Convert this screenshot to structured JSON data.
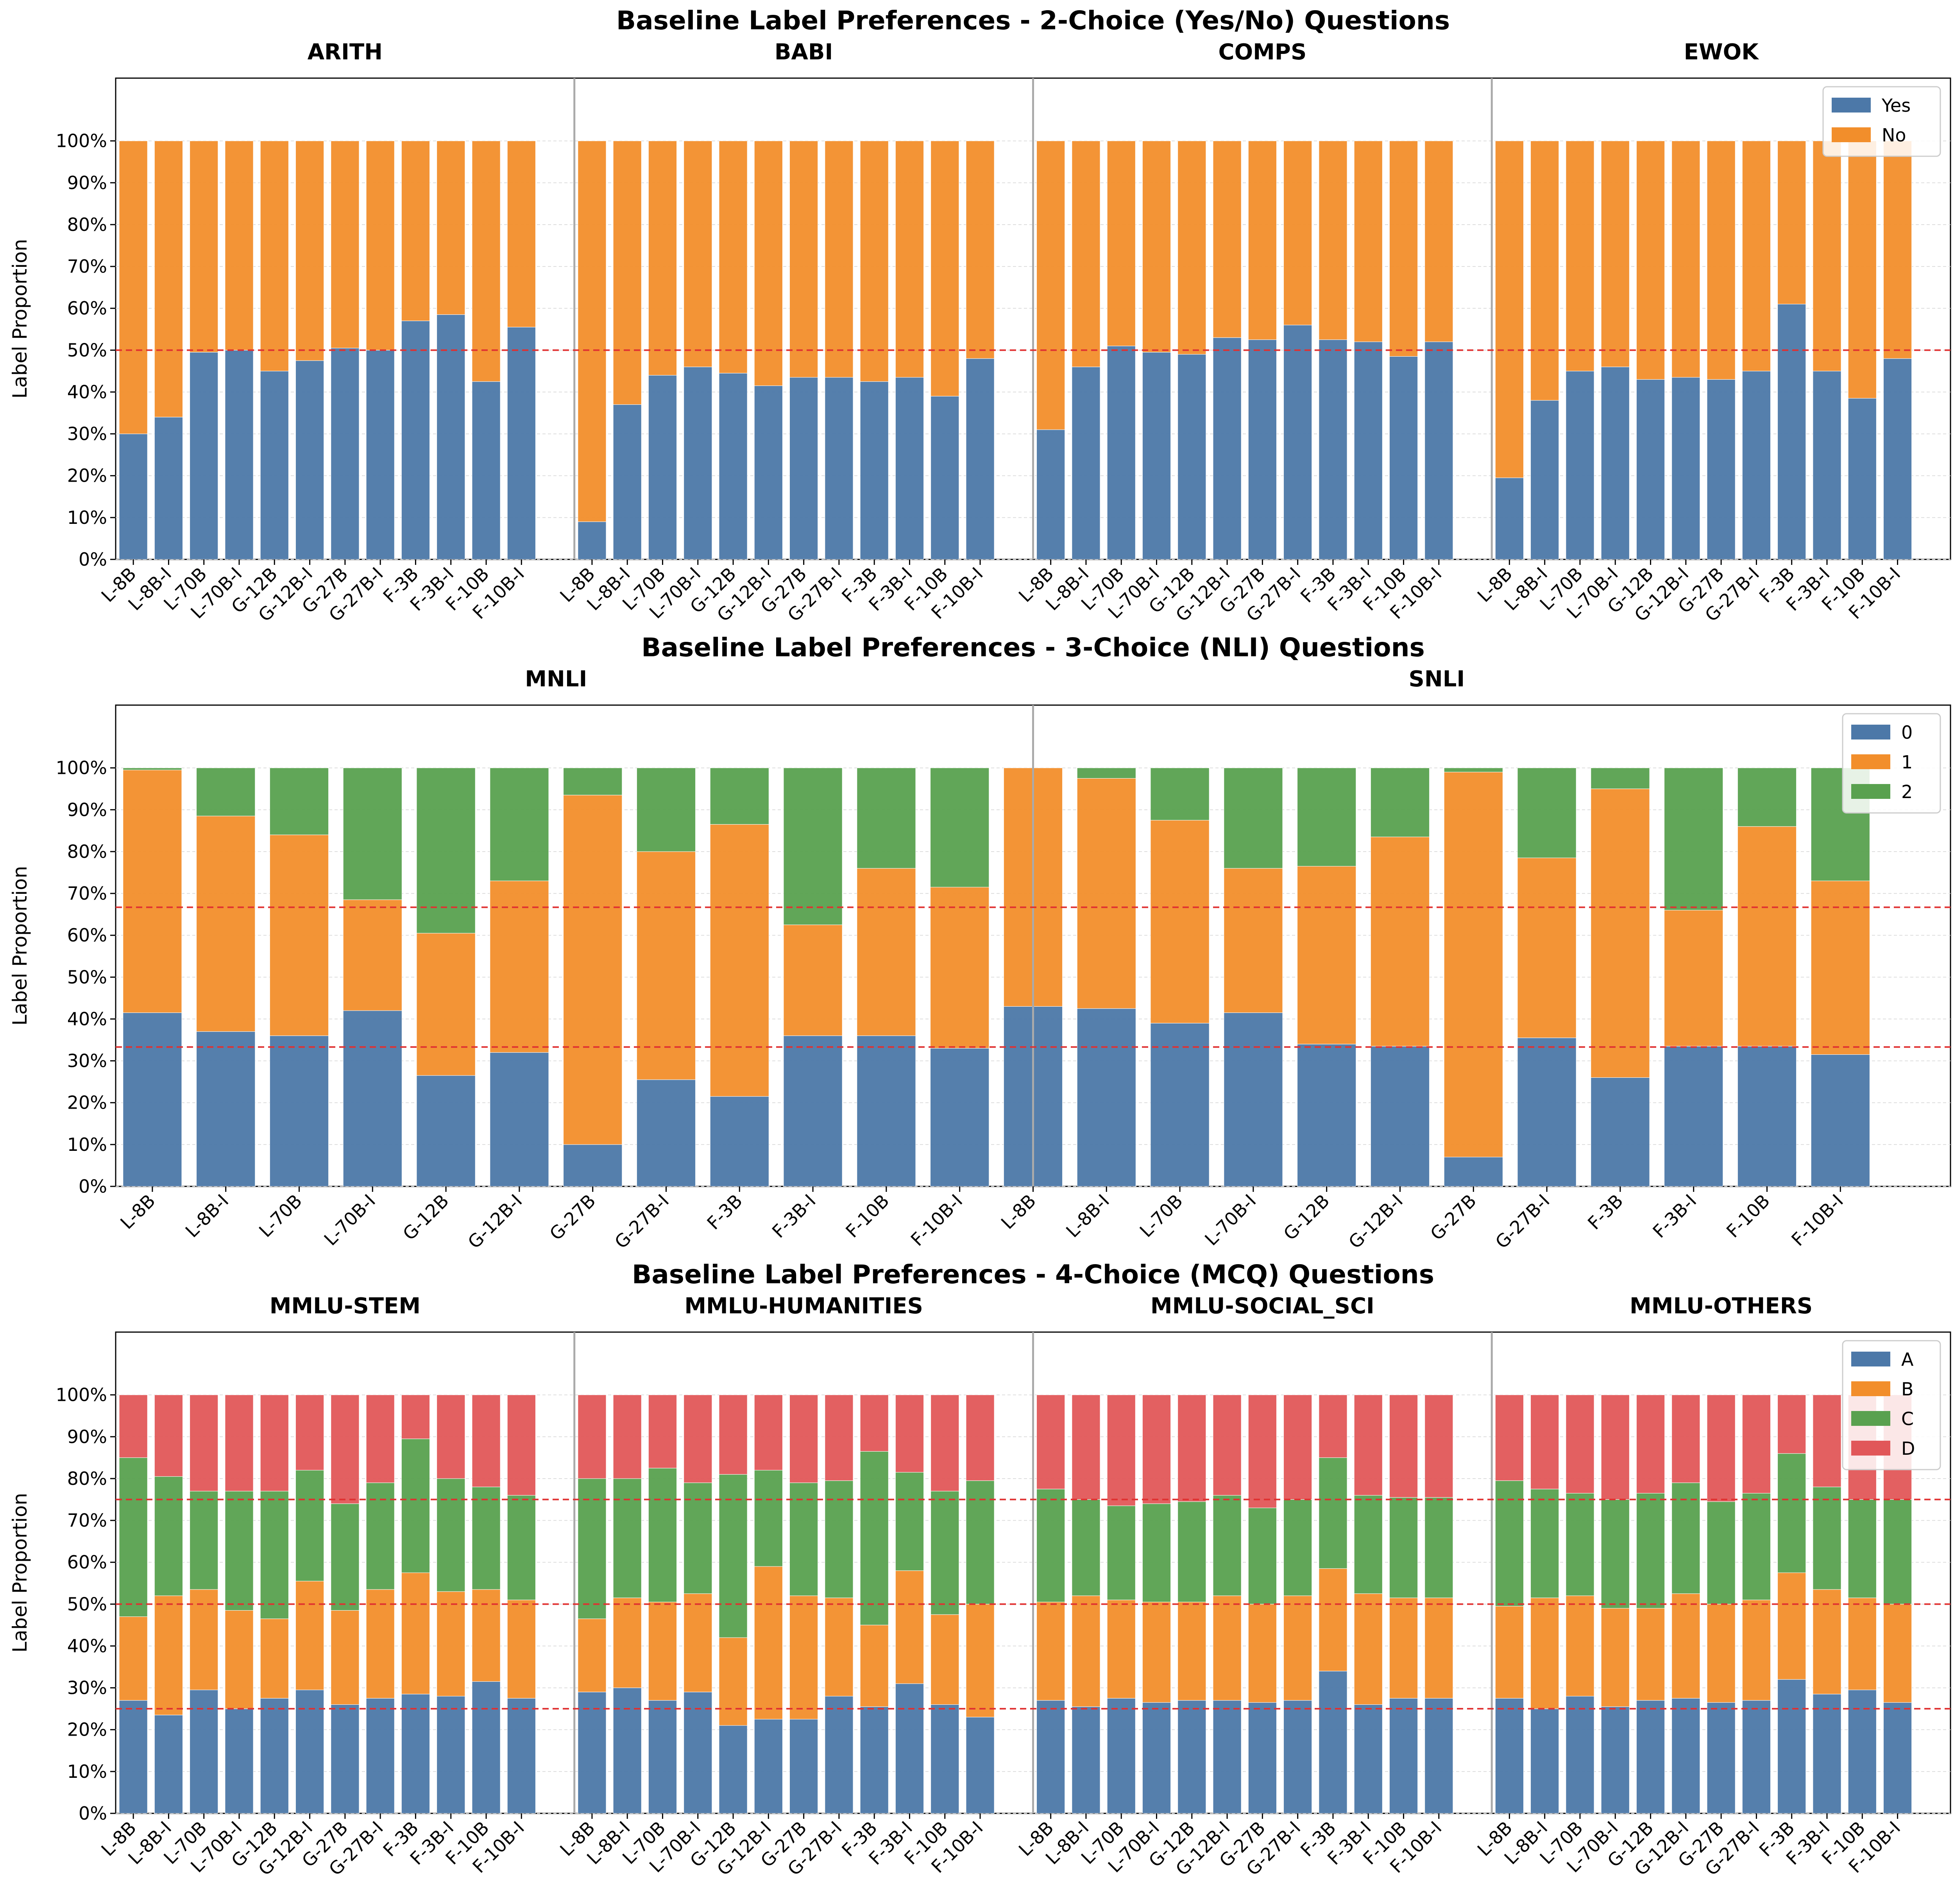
{
  "colors": {
    "A": "#4c78a8",
    "B": "#f28e2b",
    "C": "#59a14f",
    "D": "#e15759",
    "reference": "#e03030",
    "separator": "#aaaaaa"
  },
  "chart_data": [
    {
      "type": "bar",
      "stacked": true,
      "title": "Baseline Label Preferences - 2-Choice (Yes/No) Questions",
      "ylabel": "Label Proportion",
      "ylim": [
        0,
        1.15
      ],
      "yticks": [
        "0%",
        "10%",
        "20%",
        "30%",
        "40%",
        "50%",
        "60%",
        "70%",
        "80%",
        "90%",
        "100%"
      ],
      "reference_lines": [
        0.5
      ],
      "legend": {
        "position": "top-right",
        "labels": [
          "Yes",
          "No"
        ]
      },
      "categories": [
        "L-8B",
        "L-8B-I",
        "L-70B",
        "L-70B-I",
        "G-12B",
        "G-12B-I",
        "G-27B",
        "G-27B-I",
        "F-3B",
        "F-3B-I",
        "F-10B",
        "F-10B-I"
      ],
      "groups": [
        {
          "name": "ARITH",
          "series": [
            {
              "name": "Yes",
              "values": [
                0.3,
                0.34,
                0.495,
                0.5,
                0.45,
                0.475,
                0.505,
                0.5,
                0.57,
                0.585,
                0.425,
                0.555
              ]
            },
            {
              "name": "No",
              "values": [
                0.7,
                0.66,
                0.505,
                0.5,
                0.55,
                0.525,
                0.495,
                0.5,
                0.43,
                0.415,
                0.575,
                0.445
              ]
            }
          ]
        },
        {
          "name": "BABI",
          "series": [
            {
              "name": "Yes",
              "values": [
                0.09,
                0.37,
                0.44,
                0.46,
                0.445,
                0.415,
                0.435,
                0.435,
                0.425,
                0.435,
                0.39,
                0.48
              ]
            },
            {
              "name": "No",
              "values": [
                0.91,
                0.63,
                0.56,
                0.54,
                0.555,
                0.585,
                0.565,
                0.565,
                0.575,
                0.565,
                0.61,
                0.52
              ]
            }
          ]
        },
        {
          "name": "COMPS",
          "series": [
            {
              "name": "Yes",
              "values": [
                0.31,
                0.46,
                0.51,
                0.495,
                0.49,
                0.53,
                0.525,
                0.56,
                0.525,
                0.52,
                0.485,
                0.52
              ]
            },
            {
              "name": "No",
              "values": [
                0.69,
                0.54,
                0.49,
                0.505,
                0.51,
                0.47,
                0.475,
                0.44,
                0.475,
                0.48,
                0.515,
                0.48
              ]
            }
          ]
        },
        {
          "name": "EWOK",
          "series": [
            {
              "name": "Yes",
              "values": [
                0.195,
                0.38,
                0.45,
                0.46,
                0.43,
                0.435,
                0.43,
                0.45,
                0.61,
                0.45,
                0.385,
                0.48
              ]
            },
            {
              "name": "No",
              "values": [
                0.805,
                0.62,
                0.55,
                0.54,
                0.57,
                0.565,
                0.57,
                0.55,
                0.39,
                0.55,
                0.615,
                0.52
              ]
            }
          ]
        }
      ]
    },
    {
      "type": "bar",
      "stacked": true,
      "title": "Baseline Label Preferences - 3-Choice (NLI) Questions",
      "ylabel": "Label Proportion",
      "ylim": [
        0,
        1.15
      ],
      "yticks": [
        "0%",
        "10%",
        "20%",
        "30%",
        "40%",
        "50%",
        "60%",
        "70%",
        "80%",
        "90%",
        "100%"
      ],
      "reference_lines": [
        0.333,
        0.667
      ],
      "legend": {
        "position": "top-right",
        "labels": [
          "0",
          "1",
          "2"
        ]
      },
      "categories": [
        "L-8B",
        "L-8B-I",
        "L-70B",
        "L-70B-I",
        "G-12B",
        "G-12B-I",
        "G-27B",
        "G-27B-I",
        "F-3B",
        "F-3B-I",
        "F-10B",
        "F-10B-I"
      ],
      "groups": [
        {
          "name": "MNLI",
          "series": [
            {
              "name": "0",
              "values": [
                0.415,
                0.37,
                0.36,
                0.42,
                0.265,
                0.32,
                0.1,
                0.255,
                0.215,
                0.36,
                0.36,
                0.33
              ]
            },
            {
              "name": "1",
              "values": [
                0.58,
                0.515,
                0.48,
                0.265,
                0.34,
                0.41,
                0.835,
                0.545,
                0.65,
                0.265,
                0.4,
                0.385
              ]
            },
            {
              "name": "2",
              "values": [
                0.005,
                0.115,
                0.16,
                0.315,
                0.395,
                0.27,
                0.065,
                0.2,
                0.135,
                0.375,
                0.24,
                0.285
              ]
            }
          ]
        },
        {
          "name": "SNLI",
          "series": [
            {
              "name": "0",
              "values": [
                0.43,
                0.425,
                0.39,
                0.415,
                0.34,
                0.335,
                0.07,
                0.355,
                0.26,
                0.335,
                0.335,
                0.315
              ]
            },
            {
              "name": "1",
              "values": [
                0.57,
                0.55,
                0.485,
                0.345,
                0.425,
                0.5,
                0.92,
                0.43,
                0.69,
                0.325,
                0.525,
                0.415
              ]
            },
            {
              "name": "2",
              "values": [
                0.0,
                0.025,
                0.125,
                0.24,
                0.235,
                0.165,
                0.01,
                0.215,
                0.05,
                0.34,
                0.14,
                0.27
              ]
            }
          ]
        }
      ]
    },
    {
      "type": "bar",
      "stacked": true,
      "title": "Baseline Label Preferences - 4-Choice (MCQ) Questions",
      "ylabel": "Label Proportion",
      "ylim": [
        0,
        1.15
      ],
      "yticks": [
        "0%",
        "10%",
        "20%",
        "30%",
        "40%",
        "50%",
        "60%",
        "70%",
        "80%",
        "90%",
        "100%"
      ],
      "reference_lines": [
        0.25,
        0.5,
        0.75
      ],
      "legend": {
        "position": "top-right",
        "labels": [
          "A",
          "B",
          "C",
          "D"
        ]
      },
      "categories": [
        "L-8B",
        "L-8B-I",
        "L-70B",
        "L-70B-I",
        "G-12B",
        "G-12B-I",
        "G-27B",
        "G-27B-I",
        "F-3B",
        "F-3B-I",
        "F-10B",
        "F-10B-I"
      ],
      "groups": [
        {
          "name": "MMLU-STEM",
          "series": [
            {
              "name": "A",
              "values": [
                0.27,
                0.235,
                0.295,
                0.25,
                0.275,
                0.295,
                0.26,
                0.275,
                0.285,
                0.28,
                0.315,
                0.275
              ]
            },
            {
              "name": "B",
              "values": [
                0.2,
                0.285,
                0.24,
                0.235,
                0.19,
                0.26,
                0.225,
                0.26,
                0.29,
                0.25,
                0.22,
                0.235
              ]
            },
            {
              "name": "C",
              "values": [
                0.38,
                0.285,
                0.235,
                0.285,
                0.305,
                0.265,
                0.255,
                0.255,
                0.32,
                0.27,
                0.245,
                0.25
              ]
            },
            {
              "name": "D",
              "values": [
                0.15,
                0.195,
                0.23,
                0.23,
                0.23,
                0.18,
                0.26,
                0.21,
                0.105,
                0.2,
                0.22,
                0.24
              ]
            }
          ]
        },
        {
          "name": "MMLU-HUMANITIES",
          "series": [
            {
              "name": "A",
              "values": [
                0.29,
                0.3,
                0.27,
                0.29,
                0.21,
                0.225,
                0.225,
                0.28,
                0.255,
                0.31,
                0.26,
                0.23
              ]
            },
            {
              "name": "B",
              "values": [
                0.175,
                0.215,
                0.235,
                0.235,
                0.21,
                0.365,
                0.295,
                0.235,
                0.195,
                0.27,
                0.215,
                0.27
              ]
            },
            {
              "name": "C",
              "values": [
                0.335,
                0.285,
                0.32,
                0.265,
                0.39,
                0.23,
                0.27,
                0.28,
                0.415,
                0.235,
                0.295,
                0.295
              ]
            },
            {
              "name": "D",
              "values": [
                0.2,
                0.2,
                0.175,
                0.21,
                0.19,
                0.18,
                0.21,
                0.205,
                0.135,
                0.185,
                0.23,
                0.205
              ]
            }
          ]
        },
        {
          "name": "MMLU-SOCIAL_SCI",
          "series": [
            {
              "name": "A",
              "values": [
                0.27,
                0.255,
                0.275,
                0.265,
                0.27,
                0.27,
                0.265,
                0.27,
                0.34,
                0.26,
                0.275,
                0.275
              ]
            },
            {
              "name": "B",
              "values": [
                0.235,
                0.265,
                0.235,
                0.24,
                0.235,
                0.25,
                0.235,
                0.25,
                0.245,
                0.265,
                0.24,
                0.24
              ]
            },
            {
              "name": "C",
              "values": [
                0.27,
                0.23,
                0.225,
                0.235,
                0.24,
                0.24,
                0.23,
                0.23,
                0.265,
                0.235,
                0.24,
                0.24
              ]
            },
            {
              "name": "D",
              "values": [
                0.225,
                0.25,
                0.265,
                0.26,
                0.255,
                0.24,
                0.27,
                0.25,
                0.15,
                0.24,
                0.245,
                0.245
              ]
            }
          ]
        },
        {
          "name": "MMLU-OTHERS",
          "series": [
            {
              "name": "A",
              "values": [
                0.275,
                0.25,
                0.28,
                0.255,
                0.27,
                0.275,
                0.265,
                0.27,
                0.32,
                0.285,
                0.295,
                0.265
              ]
            },
            {
              "name": "B",
              "values": [
                0.22,
                0.265,
                0.24,
                0.235,
                0.22,
                0.25,
                0.235,
                0.24,
                0.255,
                0.25,
                0.22,
                0.235
              ]
            },
            {
              "name": "C",
              "values": [
                0.3,
                0.26,
                0.245,
                0.26,
                0.275,
                0.265,
                0.245,
                0.255,
                0.285,
                0.245,
                0.235,
                0.25
              ]
            },
            {
              "name": "D",
              "values": [
                0.205,
                0.225,
                0.235,
                0.25,
                0.235,
                0.21,
                0.255,
                0.235,
                0.14,
                0.22,
                0.25,
                0.25
              ]
            }
          ]
        }
      ]
    }
  ]
}
